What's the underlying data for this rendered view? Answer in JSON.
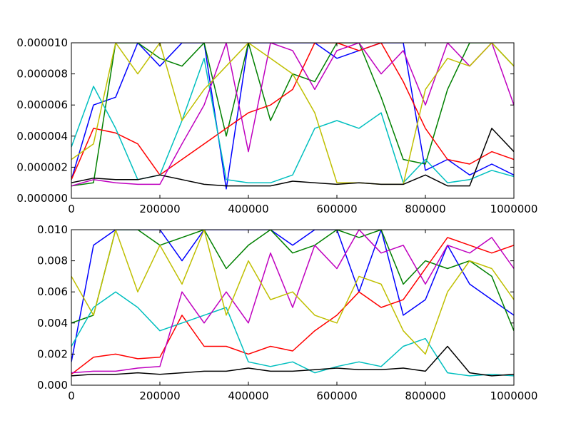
{
  "chart_data": [
    {
      "type": "line",
      "title": "",
      "xlabel": "",
      "ylabel": "",
      "xlim": [
        0,
        1000000
      ],
      "ylim": [
        0,
        1e-05
      ],
      "grid": false,
      "legend": "none",
      "x_ticks": [
        "0",
        "200000",
        "400000",
        "600000",
        "800000",
        "1000000"
      ],
      "y_ticks": [
        "0.000000",
        "0.000002",
        "0.000004",
        "0.000006",
        "0.000008",
        "0.000010"
      ],
      "x": [
        0,
        50000,
        100000,
        150000,
        200000,
        250000,
        300000,
        350000,
        400000,
        450000,
        500000,
        550000,
        600000,
        650000,
        700000,
        750000,
        800000,
        850000,
        900000,
        950000,
        1000000
      ],
      "series": [
        {
          "color": "#0000ff",
          "values": [
            1.2e-06,
            6e-06,
            6.5e-06,
            1e-05,
            8.5e-06,
            1e-05,
            1e-05,
            6e-07,
            1e-05,
            1e-05,
            1e-05,
            1e-05,
            9e-06,
            9.5e-06,
            1e-05,
            1e-05,
            1.8e-06,
            2.5e-06,
            1.5e-06,
            2.2e-06,
            1.5e-06
          ]
        },
        {
          "color": "#008000",
          "values": [
            8e-07,
            1e-06,
            1e-05,
            1e-05,
            9e-06,
            8.5e-06,
            1e-05,
            4e-06,
            1e-05,
            5e-06,
            8e-06,
            7.5e-06,
            1e-05,
            1e-05,
            6.5e-06,
            2.5e-06,
            2.2e-06,
            7e-06,
            1e-05,
            1e-05,
            8.5e-06
          ]
        },
        {
          "color": "#ff0000",
          "values": [
            1.2e-06,
            4.5e-06,
            4.2e-06,
            3.5e-06,
            1.5e-06,
            2.5e-06,
            3.5e-06,
            4.5e-06,
            5.5e-06,
            6e-06,
            7e-06,
            1e-05,
            1e-05,
            9.5e-06,
            1e-05,
            7.5e-06,
            4.5e-06,
            2.5e-06,
            2.2e-06,
            3e-06,
            2.5e-06
          ]
        },
        {
          "color": "#00bfbf",
          "values": [
            3.3e-06,
            7.2e-06,
            4.5e-06,
            1.2e-06,
            1.5e-06,
            5e-06,
            9e-06,
            1.2e-06,
            1e-06,
            1e-06,
            1.5e-06,
            4.5e-06,
            5e-06,
            4.5e-06,
            5.5e-06,
            1e-06,
            2.5e-06,
            1e-06,
            1.2e-06,
            1.8e-06,
            1.4e-06
          ]
        },
        {
          "color": "#bf00bf",
          "values": [
            8e-07,
            1.2e-06,
            1e-06,
            9e-07,
            9e-07,
            3.5e-06,
            6e-06,
            1e-05,
            3e-06,
            1e-05,
            9.5e-06,
            7e-06,
            9.5e-06,
            1e-05,
            8e-06,
            9.5e-06,
            6e-06,
            1e-05,
            8.5e-06,
            1e-05,
            6e-06
          ]
        },
        {
          "color": "#bfbf00",
          "values": [
            2.5e-06,
            3.5e-06,
            1e-05,
            8e-06,
            1e-05,
            5e-06,
            7e-06,
            8.5e-06,
            1e-05,
            9e-06,
            8e-06,
            5.5e-06,
            1e-06,
            1e-06,
            9e-07,
            9e-07,
            7e-06,
            9e-06,
            8.5e-06,
            1e-05,
            8.5e-06
          ]
        },
        {
          "color": "#000000",
          "values": [
            1e-06,
            1.3e-06,
            1.2e-06,
            1.2e-06,
            1.5e-06,
            1.2e-06,
            9e-07,
            8e-07,
            8e-07,
            8e-07,
            1.1e-06,
            1e-06,
            9e-07,
            1e-06,
            9e-07,
            9e-07,
            1.5e-06,
            8e-07,
            8e-07,
            4.5e-06,
            3e-06
          ]
        }
      ]
    },
    {
      "type": "line",
      "title": "",
      "xlabel": "",
      "ylabel": "",
      "xlim": [
        0,
        1000000
      ],
      "ylim": [
        0,
        0.01
      ],
      "grid": false,
      "legend": "none",
      "x_ticks": [
        "0",
        "200000",
        "400000",
        "600000",
        "800000",
        "1000000"
      ],
      "y_ticks": [
        "0.000",
        "0.002",
        "0.004",
        "0.006",
        "0.008",
        "0.010"
      ],
      "x": [
        0,
        50000,
        100000,
        150000,
        200000,
        250000,
        300000,
        350000,
        400000,
        450000,
        500000,
        550000,
        600000,
        650000,
        700000,
        750000,
        800000,
        850000,
        900000,
        950000,
        1000000
      ],
      "series": [
        {
          "color": "#0000ff",
          "values": [
            0.0015,
            0.009,
            0.01,
            0.01,
            0.01,
            0.008,
            0.01,
            0.01,
            0.01,
            0.01,
            0.009,
            0.01,
            0.01,
            0.006,
            0.01,
            0.0045,
            0.0055,
            0.009,
            0.0065,
            0.0055,
            0.0045
          ]
        },
        {
          "color": "#008000",
          "values": [
            0.004,
            0.0045,
            0.01,
            0.01,
            0.009,
            0.0095,
            0.01,
            0.0075,
            0.009,
            0.01,
            0.0085,
            0.009,
            0.01,
            0.0095,
            0.01,
            0.0065,
            0.008,
            0.0075,
            0.008,
            0.007,
            0.0035
          ]
        },
        {
          "color": "#ff0000",
          "values": [
            0.0007,
            0.0018,
            0.002,
            0.0017,
            0.0018,
            0.0045,
            0.0025,
            0.0025,
            0.002,
            0.0025,
            0.0022,
            0.0035,
            0.0045,
            0.006,
            0.005,
            0.0055,
            0.0075,
            0.0095,
            0.009,
            0.0085,
            0.009
          ]
        },
        {
          "color": "#00bfbf",
          "values": [
            0.0025,
            0.005,
            0.006,
            0.005,
            0.0035,
            0.004,
            0.0045,
            0.005,
            0.0015,
            0.0012,
            0.0015,
            0.0008,
            0.0012,
            0.0015,
            0.0012,
            0.0025,
            0.003,
            0.0008,
            0.0006,
            0.0007,
            0.0006
          ]
        },
        {
          "color": "#bf00bf",
          "values": [
            0.0008,
            0.0009,
            0.0009,
            0.0011,
            0.0012,
            0.006,
            0.004,
            0.006,
            0.004,
            0.0085,
            0.005,
            0.009,
            0.0075,
            0.01,
            0.0085,
            0.009,
            0.0065,
            0.009,
            0.0085,
            0.0095,
            0.0075
          ]
        },
        {
          "color": "#bfbf00",
          "values": [
            0.007,
            0.0045,
            0.01,
            0.006,
            0.009,
            0.0065,
            0.01,
            0.0045,
            0.008,
            0.0055,
            0.006,
            0.0045,
            0.004,
            0.007,
            0.0065,
            0.0035,
            0.002,
            0.006,
            0.008,
            0.0075,
            0.0055
          ]
        },
        {
          "color": "#000000",
          "values": [
            0.0006,
            0.0007,
            0.0007,
            0.0008,
            0.0007,
            0.0008,
            0.0009,
            0.0009,
            0.0011,
            0.0009,
            0.0009,
            0.001,
            0.0011,
            0.001,
            0.001,
            0.0011,
            0.0009,
            0.0025,
            0.0008,
            0.0006,
            0.0007
          ]
        }
      ]
    }
  ]
}
